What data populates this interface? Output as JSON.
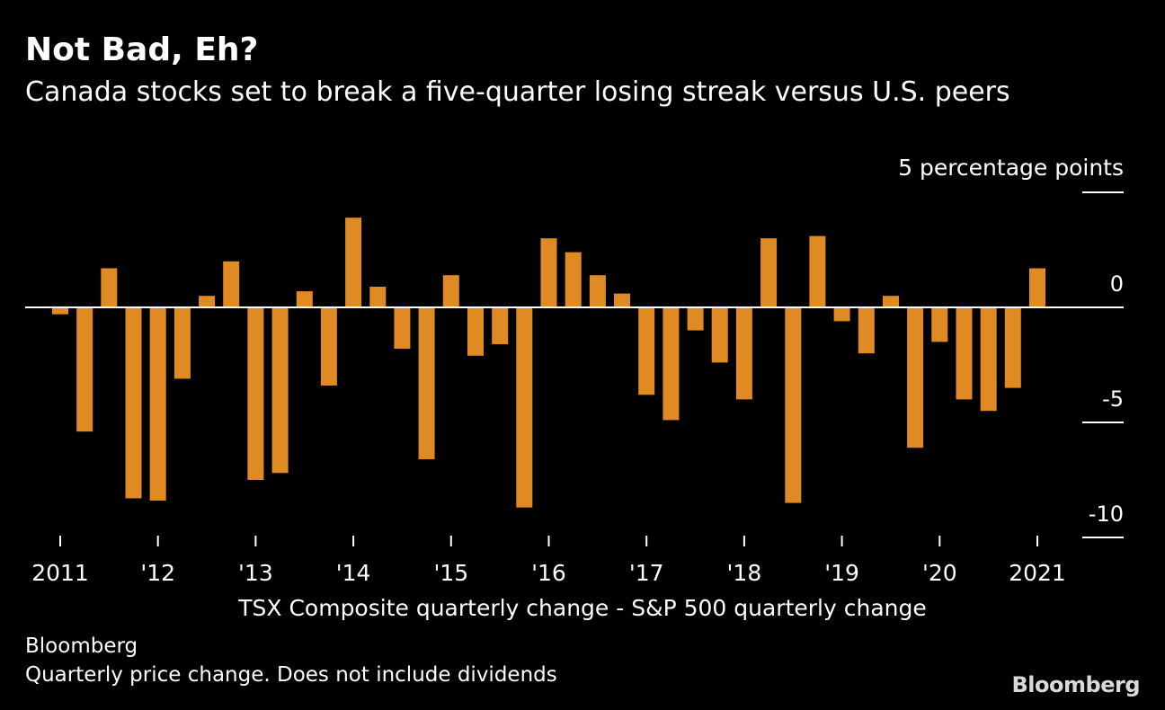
{
  "header": {
    "title": "Not Bad, Eh?",
    "subtitle": "Canada stocks set to break a five-quarter losing streak versus U.S. peers"
  },
  "footer": {
    "source": "Bloomberg",
    "note": "Quarterly price change. Does not include dividends",
    "logo": "Bloomberg"
  },
  "colors": {
    "background": "#000000",
    "bar": "#E08A23",
    "text": "#FFFFFF",
    "axis": "#FFFFFF"
  },
  "chart_data": {
    "type": "bar",
    "title": "Not Bad, Eh?",
    "subtitle": "Canada stocks set to break a five-quarter losing streak versus U.S. peers",
    "xlabel": "TSX Composite quarterly change - S&P 500 quarterly change",
    "ylabel": "",
    "y_unit_label": "5 percentage points",
    "ylim": [
      -10,
      5
    ],
    "yticks": [
      5,
      0,
      -5,
      -10
    ],
    "ytick_labels": [
      "",
      "0",
      "-5",
      "-10"
    ],
    "y_axis_side": "right",
    "grid": false,
    "x_ticks": [
      {
        "label": "2011",
        "year": 2011
      },
      {
        "label": "'12",
        "year": 2012
      },
      {
        "label": "'13",
        "year": 2013
      },
      {
        "label": "'14",
        "year": 2014
      },
      {
        "label": "'15",
        "year": 2015
      },
      {
        "label": "'16",
        "year": 2016
      },
      {
        "label": "'17",
        "year": 2017
      },
      {
        "label": "'18",
        "year": 2018
      },
      {
        "label": "'19",
        "year": 2019
      },
      {
        "label": "'20",
        "year": 2020
      },
      {
        "label": "2021",
        "year": 2021
      }
    ],
    "categories": [
      "2011 Q1",
      "2011 Q2",
      "2011 Q3",
      "2011 Q4",
      "2012 Q1",
      "2012 Q2",
      "2012 Q3",
      "2012 Q4",
      "2013 Q1",
      "2013 Q2",
      "2013 Q3",
      "2013 Q4",
      "2014 Q1",
      "2014 Q2",
      "2014 Q3",
      "2014 Q4",
      "2015 Q1",
      "2015 Q2",
      "2015 Q3",
      "2015 Q4",
      "2016 Q1",
      "2016 Q2",
      "2016 Q3",
      "2016 Q4",
      "2017 Q1",
      "2017 Q2",
      "2017 Q3",
      "2017 Q4",
      "2018 Q1",
      "2018 Q2",
      "2018 Q3",
      "2018 Q4",
      "2019 Q1",
      "2019 Q2",
      "2019 Q3",
      "2019 Q4",
      "2020 Q1",
      "2020 Q2",
      "2020 Q3",
      "2020 Q4",
      "2021 Q1"
    ],
    "values": [
      -0.3,
      -5.4,
      1.7,
      -8.3,
      -8.4,
      -3.1,
      0.5,
      2.0,
      -7.5,
      -7.2,
      0.7,
      -3.4,
      3.9,
      0.9,
      -1.8,
      -6.6,
      1.4,
      -2.1,
      -1.6,
      -8.7,
      3.0,
      2.4,
      1.4,
      0.6,
      -3.8,
      -4.9,
      -1.0,
      -2.4,
      -4.0,
      3.0,
      -8.5,
      3.1,
      -0.6,
      -2.0,
      0.5,
      -6.1,
      -1.5,
      -4.0,
      -4.5,
      -3.5,
      1.7
    ]
  }
}
